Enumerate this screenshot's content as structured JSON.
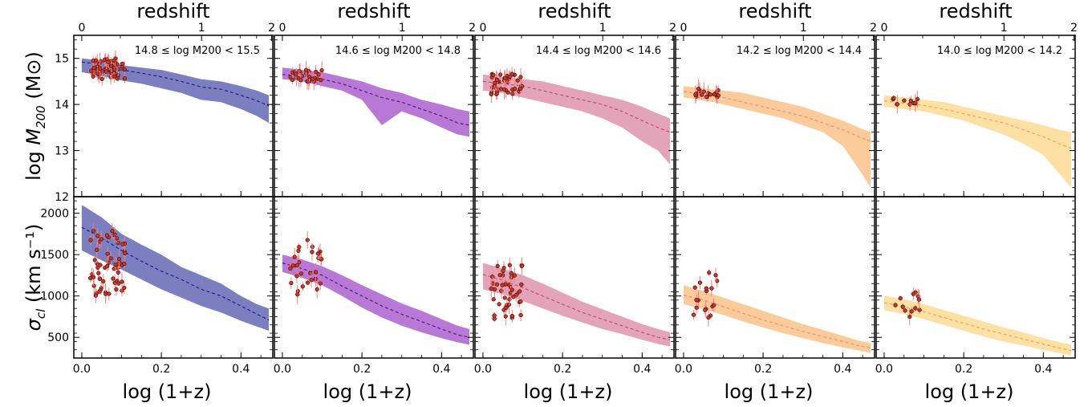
{
  "chart_data": {
    "type": "scatter",
    "top_axis_label": "redshift",
    "top_axis_ticks": [
      "0",
      "1",
      "2"
    ],
    "xlabel": "log (1+z)",
    "xlim": [
      -0.02,
      0.48
    ],
    "x_ticks": [
      0.0,
      0.2,
      0.4
    ],
    "x_tick_labels": [
      "0.0",
      "0.2",
      "0.4"
    ],
    "rows": [
      {
        "key": "mass",
        "ylabel_prefix": "log ",
        "ylabel_var": "M",
        "ylabel_sub": "200",
        "ylabel_unit": " (M⊙)",
        "ylim": [
          12,
          15.5
        ],
        "ticks": [
          12,
          13,
          14,
          15
        ]
      },
      {
        "key": "sigma",
        "ylabel_var": "σ",
        "ylabel_sub": "cl",
        "ylabel_unit": " (km s⁻¹)",
        "ylim": [
          250,
          2200
        ],
        "ticks": [
          500,
          1000,
          1500,
          2000
        ]
      }
    ],
    "panels": [
      {
        "bin_text": "14.8 ≤  log M200 < 15.5",
        "fill_color": "#7b7fbf",
        "line_color": "#1f1f8f",
        "mass": {
          "x": [
            0.0,
            0.05,
            0.1,
            0.15,
            0.2,
            0.25,
            0.3,
            0.35,
            0.4,
            0.44,
            0.47
          ],
          "upper": [
            15.0,
            14.95,
            14.85,
            14.8,
            14.75,
            14.65,
            14.55,
            14.5,
            14.4,
            14.3,
            14.2
          ],
          "mid": [
            14.92,
            14.87,
            14.75,
            14.68,
            14.6,
            14.5,
            14.38,
            14.33,
            14.2,
            14.08,
            13.97
          ],
          "lower": [
            14.7,
            14.62,
            14.52,
            14.45,
            14.35,
            14.25,
            14.1,
            14.05,
            13.9,
            13.75,
            13.6
          ],
          "points": {
            "n": 60,
            "xmin": 0.02,
            "xmax": 0.11,
            "ymin": 14.55,
            "ymax": 15.0
          }
        },
        "sigma": {
          "x": [
            0.0,
            0.05,
            0.1,
            0.15,
            0.2,
            0.25,
            0.3,
            0.35,
            0.4,
            0.44,
            0.47
          ],
          "upper": [
            2100,
            1950,
            1750,
            1620,
            1500,
            1350,
            1250,
            1150,
            1000,
            900,
            850
          ],
          "mid": [
            1830,
            1700,
            1550,
            1420,
            1300,
            1200,
            1080,
            1000,
            880,
            780,
            710
          ],
          "lower": [
            1550,
            1430,
            1320,
            1200,
            1080,
            980,
            880,
            800,
            700,
            630,
            580
          ],
          "points": {
            "n": 60,
            "xmin": 0.02,
            "xmax": 0.11,
            "ymin": 1000,
            "ymax": 1800
          }
        }
      },
      {
        "bin_text": "14.6 ≤  log M200 < 14.8",
        "fill_color": "#b878d6",
        "line_color": "#5a1a8a",
        "mass": {
          "x": [
            0.0,
            0.05,
            0.1,
            0.15,
            0.2,
            0.25,
            0.3,
            0.35,
            0.4,
            0.44,
            0.47
          ],
          "upper": [
            14.8,
            14.75,
            14.7,
            14.6,
            14.5,
            14.35,
            14.25,
            14.1,
            14.0,
            13.9,
            13.85
          ],
          "mid": [
            14.65,
            14.62,
            14.55,
            14.45,
            14.3,
            14.15,
            14.05,
            13.9,
            13.75,
            13.6,
            13.55
          ],
          "lower": [
            14.55,
            14.5,
            14.4,
            14.3,
            14.1,
            13.55,
            13.85,
            13.7,
            13.5,
            13.35,
            13.3
          ],
          "points": {
            "n": 30,
            "xmin": 0.02,
            "xmax": 0.1,
            "ymin": 14.5,
            "ymax": 14.75
          }
        },
        "sigma": {
          "x": [
            0.0,
            0.05,
            0.1,
            0.15,
            0.2,
            0.25,
            0.3,
            0.35,
            0.4,
            0.44,
            0.47
          ],
          "upper": [
            1500,
            1440,
            1360,
            1250,
            1130,
            1020,
            910,
            820,
            720,
            640,
            600
          ],
          "mid": [
            1400,
            1330,
            1250,
            1120,
            1000,
            880,
            780,
            690,
            600,
            530,
            500
          ],
          "lower": [
            1290,
            1220,
            1130,
            1000,
            860,
            740,
            640,
            560,
            490,
            440,
            410
          ],
          "points": {
            "n": 30,
            "xmin": 0.02,
            "xmax": 0.1,
            "ymin": 1000,
            "ymax": 1700
          }
        }
      },
      {
        "bin_text": "14.4 ≤  log M200 < 14.6",
        "fill_color": "#e3a3b8",
        "line_color": "#c44d6e",
        "mass": {
          "x": [
            0.0,
            0.05,
            0.1,
            0.15,
            0.2,
            0.25,
            0.3,
            0.35,
            0.4,
            0.44,
            0.47
          ],
          "upper": [
            14.65,
            14.6,
            14.55,
            14.5,
            14.4,
            14.3,
            14.2,
            14.1,
            13.95,
            13.8,
            13.7
          ],
          "mid": [
            14.5,
            14.45,
            14.4,
            14.3,
            14.2,
            14.1,
            14.0,
            13.85,
            13.65,
            13.5,
            13.4
          ],
          "lower": [
            14.3,
            14.25,
            14.15,
            14.05,
            13.95,
            13.85,
            13.7,
            13.5,
            13.2,
            13.0,
            12.7
          ],
          "points": {
            "n": 45,
            "xmin": 0.02,
            "xmax": 0.1,
            "ymin": 14.2,
            "ymax": 14.7
          }
        },
        "sigma": {
          "x": [
            0.0,
            0.05,
            0.1,
            0.15,
            0.2,
            0.25,
            0.3,
            0.35,
            0.4,
            0.44,
            0.47
          ],
          "upper": [
            1400,
            1330,
            1250,
            1150,
            1040,
            930,
            840,
            750,
            660,
            600,
            560
          ],
          "mid": [
            1260,
            1190,
            1100,
            1000,
            900,
            800,
            720,
            640,
            560,
            500,
            470
          ],
          "lower": [
            1080,
            1020,
            940,
            850,
            760,
            680,
            600,
            540,
            470,
            420,
            390
          ],
          "points": {
            "n": 45,
            "xmin": 0.02,
            "xmax": 0.1,
            "ymin": 700,
            "ymax": 1400
          }
        }
      },
      {
        "bin_text": "14.2 ≤  log M200 < 14.4",
        "fill_color": "#fccb9c",
        "line_color": "#e8966a",
        "mass": {
          "x": [
            0.0,
            0.05,
            0.1,
            0.15,
            0.2,
            0.25,
            0.3,
            0.35,
            0.4,
            0.44,
            0.47
          ],
          "upper": [
            14.4,
            14.35,
            14.3,
            14.25,
            14.15,
            14.05,
            13.95,
            13.8,
            13.65,
            13.5,
            13.4
          ],
          "mid": [
            14.28,
            14.22,
            14.15,
            14.05,
            13.95,
            13.85,
            13.75,
            13.6,
            13.45,
            13.3,
            13.2
          ],
          "lower": [
            14.15,
            14.1,
            14.0,
            13.9,
            13.8,
            13.7,
            13.55,
            13.4,
            13.1,
            12.6,
            12.2
          ],
          "points": {
            "n": 18,
            "xmin": 0.02,
            "xmax": 0.09,
            "ymin": 14.15,
            "ymax": 14.35
          }
        },
        "sigma": {
          "x": [
            0.0,
            0.05,
            0.1,
            0.15,
            0.2,
            0.25,
            0.3,
            0.35,
            0.4,
            0.44,
            0.47
          ],
          "upper": [
            1130,
            1060,
            980,
            900,
            820,
            740,
            660,
            590,
            520,
            460,
            430
          ],
          "mid": [
            1010,
            950,
            870,
            790,
            710,
            640,
            570,
            510,
            450,
            400,
            370
          ],
          "lower": [
            900,
            840,
            770,
            690,
            620,
            550,
            490,
            430,
            380,
            340,
            310
          ],
          "points": {
            "n": 18,
            "xmin": 0.02,
            "xmax": 0.09,
            "ymin": 700,
            "ymax": 1300
          }
        }
      },
      {
        "bin_text": "14.0 ≤  log M200 < 14.2",
        "fill_color": "#fde0a3",
        "line_color": "#e8a95a",
        "mass": {
          "x": [
            0.0,
            0.05,
            0.1,
            0.15,
            0.2,
            0.25,
            0.3,
            0.35,
            0.4,
            0.44,
            0.47
          ],
          "upper": [
            14.2,
            14.15,
            14.1,
            14.05,
            13.95,
            13.85,
            13.75,
            13.65,
            13.55,
            13.45,
            13.4
          ],
          "mid": [
            14.08,
            14.02,
            13.98,
            13.9,
            13.8,
            13.7,
            13.6,
            13.45,
            13.3,
            13.15,
            13.05
          ],
          "lower": [
            13.95,
            13.9,
            13.85,
            13.75,
            13.65,
            13.5,
            13.35,
            13.15,
            12.9,
            12.5,
            12.2
          ],
          "points": {
            "n": 12,
            "xmin": 0.02,
            "xmax": 0.09,
            "ymin": 14.0,
            "ymax": 14.15
          }
        },
        "sigma": {
          "x": [
            0.0,
            0.05,
            0.1,
            0.15,
            0.2,
            0.25,
            0.3,
            0.35,
            0.4,
            0.44,
            0.47
          ],
          "upper": [
            1000,
            960,
            900,
            830,
            760,
            690,
            620,
            560,
            490,
            440,
            410
          ],
          "mid": [
            920,
            870,
            810,
            740,
            670,
            600,
            540,
            480,
            420,
            370,
            340
          ],
          "lower": [
            830,
            780,
            720,
            650,
            580,
            510,
            450,
            400,
            350,
            310,
            280
          ],
          "points": {
            "n": 12,
            "xmin": 0.02,
            "xmax": 0.09,
            "ymin": 700,
            "ymax": 1050
          }
        }
      }
    ]
  }
}
